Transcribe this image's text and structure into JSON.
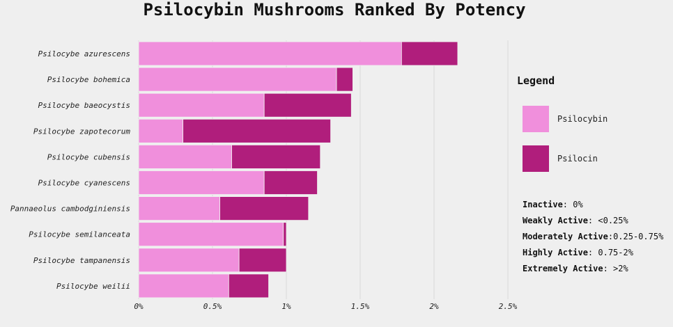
{
  "colors": {
    "background": "#efefef",
    "psilocybin": "#f08fdc",
    "psilocin": "#b01e7c",
    "grid": "#d8d8d8"
  },
  "chart_data": {
    "type": "bar",
    "orientation": "horizontal",
    "stacked": true,
    "title": "Psilocybin Mushrooms Ranked By Potency",
    "xlabel": "",
    "ylabel": "",
    "xlim": [
      0,
      2.5
    ],
    "x_ticks": [
      "0%",
      "0.5%",
      "1%",
      "1.5%",
      "2%",
      "2.5%"
    ],
    "grid": "vertical",
    "legend_position": "right",
    "categories": [
      "Psilocybe azurescens",
      "Psilocybe bohemica",
      "Psilocybe baeocystis",
      "Psilocybe zapotecorum",
      "Psilocybe cubensis",
      "Psilocybe cyanescens",
      "Pannaeolus cambodginiensis",
      "Psilocybe semilanceata",
      "Psilocybe tampanensis",
      "Psilocybe weilii"
    ],
    "series": [
      {
        "name": "Psilocybin",
        "color": "#f08fdc",
        "values": [
          1.78,
          1.34,
          0.85,
          0.3,
          0.63,
          0.85,
          0.55,
          0.98,
          0.68,
          0.61
        ]
      },
      {
        "name": "Psilocin",
        "color": "#b01e7c",
        "values": [
          0.38,
          0.11,
          0.59,
          1.0,
          0.6,
          0.36,
          0.6,
          0.02,
          0.32,
          0.27
        ]
      }
    ]
  },
  "legend": {
    "title": "Legend",
    "items": [
      "Psilocybin",
      "Psilocin"
    ]
  },
  "activity_scale": [
    {
      "level": "Inactive",
      "range": "0%"
    },
    {
      "level": "Weakly Active",
      "range": "<0.25%"
    },
    {
      "level": "Moderately Active",
      "range": "0.25-0.75%"
    },
    {
      "level": "Highly Active",
      "range": "0.75-2%"
    },
    {
      "level": "Extremely Active",
      "range": ">2%"
    }
  ]
}
